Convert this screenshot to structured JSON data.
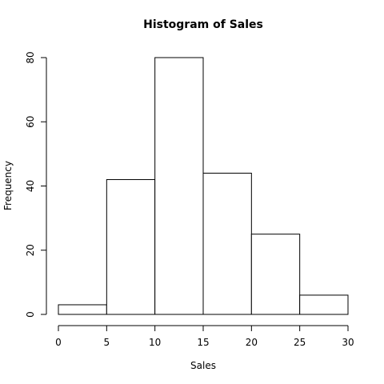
{
  "chart_data": {
    "type": "bar",
    "title": "Histogram of Sales",
    "xlabel": "Sales",
    "ylabel": "Frequency",
    "bins": [
      {
        "start": 0,
        "end": 5,
        "count": 3
      },
      {
        "start": 5,
        "end": 10,
        "count": 42
      },
      {
        "start": 10,
        "end": 15,
        "count": 80
      },
      {
        "start": 15,
        "end": 20,
        "count": 44
      },
      {
        "start": 20,
        "end": 25,
        "count": 25
      },
      {
        "start": 25,
        "end": 30,
        "count": 6
      }
    ],
    "xlim": [
      0,
      30
    ],
    "ylim": [
      0,
      80
    ],
    "xticks": [
      0,
      5,
      10,
      15,
      20,
      25,
      30
    ],
    "yticks": [
      0,
      20,
      40,
      60,
      80
    ],
    "grid": false,
    "legend": "none"
  }
}
